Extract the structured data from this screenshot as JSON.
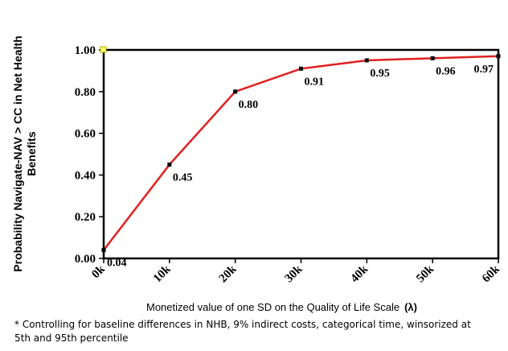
{
  "chart_data": {
    "type": "line",
    "categories": [
      "0k",
      "10k",
      "20k",
      "30k",
      "40k",
      "50k",
      "60k"
    ],
    "values": [
      0.04,
      0.45,
      0.8,
      0.91,
      0.95,
      0.96,
      0.97
    ],
    "data_labels": [
      "0.04",
      "0.45",
      "0.80",
      "0.91",
      "0.95",
      "0.96",
      "0.97"
    ],
    "ytick_labels": [
      "0.00",
      "0.20",
      "0.40",
      "0.60",
      "0.80",
      "1.00"
    ],
    "ylim": [
      0,
      1
    ],
    "ylabel_line1": "Probability Navigate-NAV > CC in Net Health",
    "ylabel_line2": "Benefits",
    "xlabel": "Monetized value of one SD on the Quality of Life Scale",
    "xlabel_symbol": "(λ)",
    "line_color": "#e02020",
    "marker_color": "#000000",
    "grid": false,
    "legend": "none"
  },
  "footnote": "* Controlling for baseline differences in NHB, 9% indirect costs, categorical time, winsorized at 5th and 95th percentile"
}
